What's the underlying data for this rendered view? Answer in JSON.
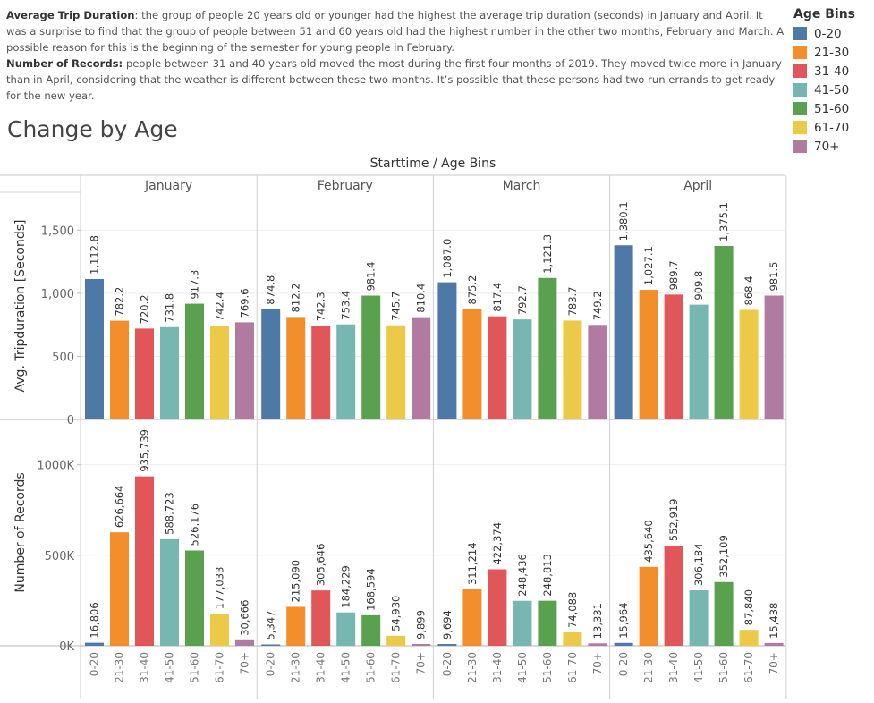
{
  "description": {
    "p1_label": "Average Trip Duration",
    "p1_text": ": the group of people 20 years old or younger had the highest  the average trip duration (seconds)  in January and April. It was a surprise to find that the group of people between 51 and 60 years old had the highest number in the other two months, February and March. A possible reason for this is the beginning of the semester for young people in February.",
    "p2_label": "Number of Records:",
    "p2_text": " people between 31 and 40 years old moved the most during the first four months of 2019. They moved twice more in January than in April, considering that the weather is different between these two months. It’s possible that these persons had two run errands to get ready for the new year."
  },
  "page_title": "Change by Age",
  "legend": {
    "title": "Age Bins",
    "items": [
      {
        "label": "0-20",
        "color": "#4e79a7"
      },
      {
        "label": "21-30",
        "color": "#f28e2b"
      },
      {
        "label": "31-40",
        "color": "#e15759"
      },
      {
        "label": "41-50",
        "color": "#76b7b2"
      },
      {
        "label": "51-60",
        "color": "#59a14f"
      },
      {
        "label": "61-70",
        "color": "#edc948"
      },
      {
        "label": "70+",
        "color": "#b07aa1"
      }
    ]
  },
  "chart_data": {
    "type": "bar",
    "header": "Starttime / Age Bins",
    "months": [
      "January",
      "February",
      "March",
      "April"
    ],
    "categories": [
      "0-20",
      "21-30",
      "31-40",
      "41-50",
      "51-60",
      "61-70",
      "70+"
    ],
    "colors": [
      "#4e79a7",
      "#f28e2b",
      "#e15759",
      "#76b7b2",
      "#59a14f",
      "#edc948",
      "#b07aa1"
    ],
    "top": {
      "ylabel": "Avg. Tripduration [Seconds]",
      "ylim": [
        0,
        1800
      ],
      "ticks": [
        0,
        500,
        1000,
        1500
      ],
      "tick_labels": [
        "0",
        "500",
        "1,000",
        "1,500"
      ],
      "values": [
        [
          1112.8,
          782.2,
          720.2,
          731.8,
          917.3,
          742.4,
          769.6
        ],
        [
          874.8,
          812.2,
          742.3,
          753.4,
          981.4,
          745.7,
          810.4
        ],
        [
          1087.0,
          875.2,
          817.4,
          792.7,
          1121.3,
          783.7,
          749.2
        ],
        [
          1380.1,
          1027.1,
          989.7,
          909.8,
          1375.1,
          868.4,
          981.5
        ]
      ],
      "labels": [
        [
          "1,112.8",
          "782.2",
          "720.2",
          "731.8",
          "917.3",
          "742.4",
          "769.6"
        ],
        [
          "874.8",
          "812.2",
          "742.3",
          "753.4",
          "981.4",
          "745.7",
          "810.4"
        ],
        [
          "1,087.0",
          "875.2",
          "817.4",
          "792.7",
          "1,121.3",
          "783.7",
          "749.2"
        ],
        [
          "1,380.1",
          "1,027.1",
          "989.7",
          "909.8",
          "1,375.1",
          "868.4",
          "981.5"
        ]
      ]
    },
    "bottom": {
      "ylabel": "Number of Records",
      "ylim": [
        0,
        1250000
      ],
      "ticks": [
        0,
        500000,
        1000000
      ],
      "tick_labels": [
        "0K",
        "500K",
        "1000K"
      ],
      "values": [
        [
          16806,
          626664,
          935739,
          588723,
          526176,
          177033,
          30666
        ],
        [
          5347,
          215090,
          305646,
          184229,
          168594,
          54930,
          9899
        ],
        [
          9694,
          311214,
          422374,
          248436,
          248813,
          74088,
          13331
        ],
        [
          15964,
          435640,
          552919,
          306184,
          352109,
          87840,
          15438
        ]
      ],
      "labels": [
        [
          "16,806",
          "626,664",
          "935,739",
          "588,723",
          "526,176",
          "177,033",
          "30,666"
        ],
        [
          "5,347",
          "215,090",
          "305,646",
          "184,229",
          "168,594",
          "54,930",
          "9,899"
        ],
        [
          "9,694",
          "311,214",
          "422,374",
          "248,436",
          "248,813",
          "74,088",
          "13,331"
        ],
        [
          "15,964",
          "435,640",
          "552,919",
          "306,184",
          "352,109",
          "87,840",
          "15,438"
        ]
      ]
    },
    "grid": true,
    "legend_position": "top-right"
  }
}
